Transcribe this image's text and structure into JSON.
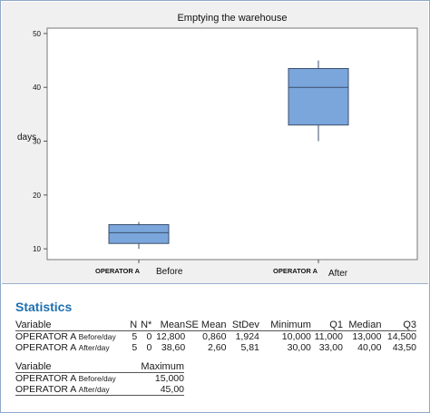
{
  "chart_data": {
    "type": "box",
    "title": "Emptying the warehouse",
    "ylabel": "days",
    "ylim": [
      8,
      51
    ],
    "yticks": [
      10,
      20,
      30,
      40,
      50
    ],
    "categories": [
      "OPERATOR A",
      "OPERATOR A"
    ],
    "category_sublabels": [
      "Before",
      "After"
    ],
    "boxes": [
      {
        "min": 10.0,
        "q1": 11.0,
        "median": 13.0,
        "q3": 14.5,
        "max": 15.0
      },
      {
        "min": 30.0,
        "q1": 33.0,
        "median": 40.0,
        "q3": 43.5,
        "max": 45.0
      }
    ],
    "box_color": "#7aa6dc",
    "box_edge": "#3b4f6b"
  },
  "statistics": {
    "title": "Statistics",
    "headers": [
      "Variable",
      "N",
      "N*",
      "Mean",
      "SE Mean",
      "StDev",
      "Minimum",
      "Q1",
      "Median",
      "Q3"
    ],
    "rows": [
      {
        "variable": "OPERATOR A",
        "sub": "Before/day",
        "n": "5",
        "nstar": "0",
        "mean": "12,800",
        "se_mean": "0,860",
        "stdev": "1,924",
        "minimum": "10,000",
        "q1": "11,000",
        "median": "13,000",
        "q3": "14,500"
      },
      {
        "variable": "OPERATOR A",
        "sub": "After/day",
        "n": "5",
        "nstar": "0",
        "mean": "38,60",
        "se_mean": "2,60",
        "stdev": "5,81",
        "minimum": "30,00",
        "q1": "33,00",
        "median": "40,00",
        "q3": "43,50"
      }
    ],
    "headers2": [
      "Variable",
      "Maximum"
    ],
    "rows2": [
      {
        "variable": "OPERATOR A",
        "sub": "Before/day",
        "maximum": "15,000"
      },
      {
        "variable": "OPERATOR A",
        "sub": "After/day",
        "maximum": "45,00"
      }
    ]
  }
}
